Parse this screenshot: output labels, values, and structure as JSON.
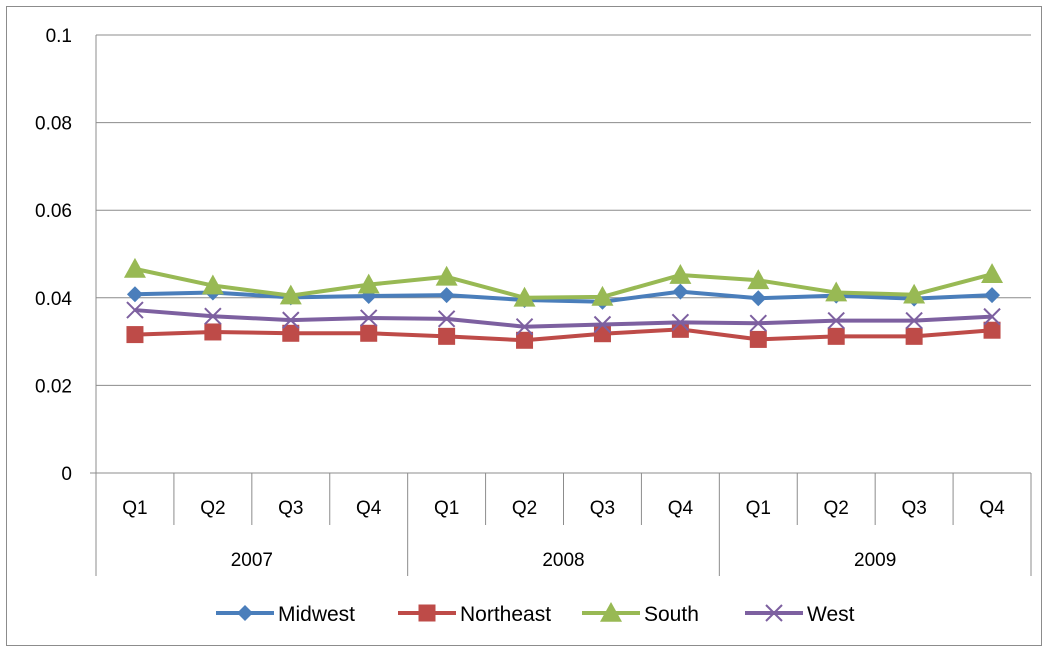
{
  "chart_data": {
    "type": "line",
    "title": "",
    "xlabel": "",
    "ylabel": "",
    "ylim": [
      0,
      0.1
    ],
    "yticks": [
      "0",
      "0.02",
      "0.04",
      "0.06",
      "0.08",
      "0.1"
    ],
    "ytick_values": [
      0,
      0.02,
      0.04,
      0.06,
      0.08,
      0.1
    ],
    "categories": [
      "Q1",
      "Q2",
      "Q3",
      "Q4",
      "Q1",
      "Q2",
      "Q3",
      "Q4",
      "Q1",
      "Q2",
      "Q3",
      "Q4"
    ],
    "groups": [
      {
        "label": "2007",
        "count": 4
      },
      {
        "label": "2008",
        "count": 4
      },
      {
        "label": "2009",
        "count": 4
      }
    ],
    "grid": true,
    "legend_position": "bottom",
    "series": [
      {
        "name": "Midwest",
        "color": "#4a7ebb",
        "marker": "diamond",
        "values": [
          0.0408,
          0.0412,
          0.0401,
          0.0404,
          0.0406,
          0.0395,
          0.0391,
          0.0414,
          0.0399,
          0.0405,
          0.0398,
          0.0406
        ]
      },
      {
        "name": "Northeast",
        "color": "#be4b48",
        "marker": "square",
        "values": [
          0.0316,
          0.0322,
          0.0319,
          0.0319,
          0.0312,
          0.0303,
          0.0318,
          0.0328,
          0.0305,
          0.0312,
          0.0312,
          0.0326
        ]
      },
      {
        "name": "South",
        "color": "#98b954",
        "marker": "triangle",
        "values": [
          0.0466,
          0.0428,
          0.0405,
          0.043,
          0.0448,
          0.04,
          0.0402,
          0.0452,
          0.044,
          0.0412,
          0.0407,
          0.0454
        ]
      },
      {
        "name": "West",
        "color": "#7d60a0",
        "marker": "x",
        "values": [
          0.0372,
          0.0358,
          0.0349,
          0.0354,
          0.0352,
          0.0334,
          0.0339,
          0.0344,
          0.0342,
          0.0348,
          0.0348,
          0.0357
        ]
      }
    ]
  }
}
